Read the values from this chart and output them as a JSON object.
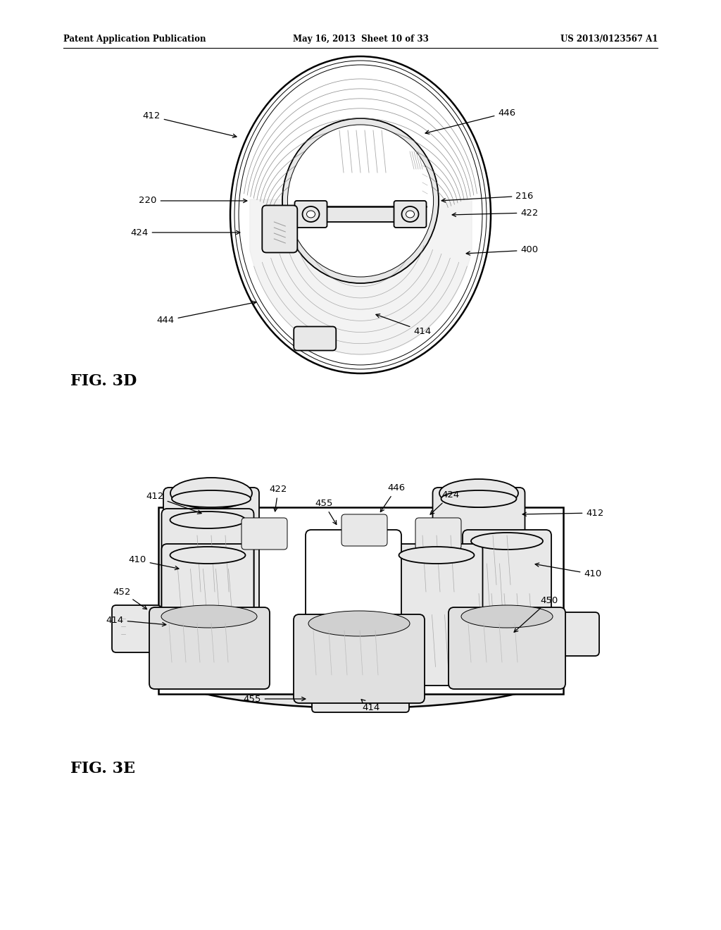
{
  "bg_color": "#ffffff",
  "text_color": "#000000",
  "header_left": "Patent Application Publication",
  "header_mid": "May 16, 2013  Sheet 10 of 33",
  "header_right": "US 2013/0123567 A1",
  "fig3d_label": "FIG. 3D",
  "fig3e_label": "FIG. 3E",
  "line_color": "#000000",
  "shade_color": "#cccccc",
  "light_shade": "#e8e8e8",
  "dark_shade": "#999999"
}
